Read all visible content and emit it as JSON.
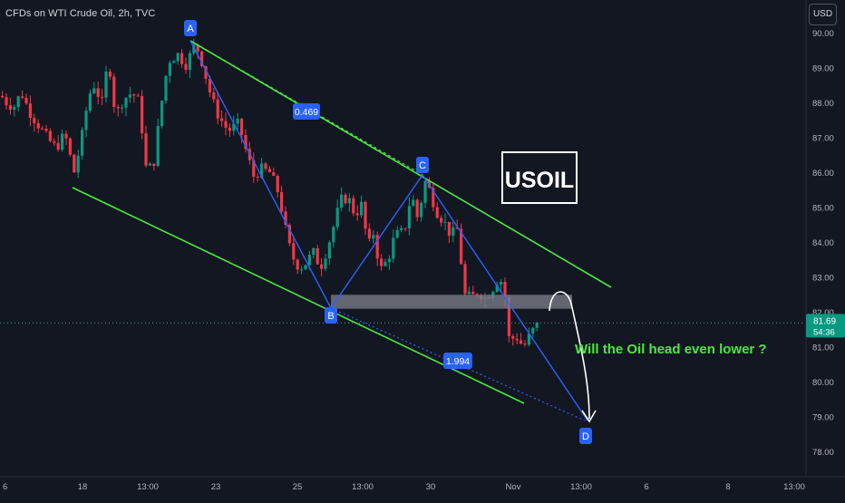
{
  "header": {
    "title": "CFDs on WTI Crude Oil, 2h, TVC"
  },
  "currency_button": {
    "label": "USD"
  },
  "price_tag": {
    "price": "81.69",
    "countdown": "54:36"
  },
  "colors": {
    "up": "#089981",
    "down": "#f23645",
    "channel": "#4ce840",
    "pattern": "#2962ff",
    "callout": "#4ce840"
  },
  "chart_data": {
    "type": "candlestick",
    "symbol": "USOIL",
    "title": "CFDs on WTI Crude Oil, 2h, TVC",
    "y_axis": {
      "range": [
        77.5,
        90.5
      ],
      "ticks": [
        "90.00",
        "89.00",
        "88.00",
        "87.00",
        "86.00",
        "85.00",
        "84.00",
        "83.00",
        "82.00",
        "81.00",
        "80.00",
        "79.00",
        "78.00"
      ],
      "side": "right"
    },
    "x_axis": {
      "ticks": [
        "6",
        "18",
        "13:00",
        "23",
        "25",
        "13:00",
        "30",
        "Nov",
        "13:00",
        "6",
        "8",
        "13:00"
      ]
    },
    "last_price": 81.69,
    "pattern_points": [
      {
        "label": "A",
        "price": 89.7
      },
      {
        "label": "B",
        "price": 82.3
      },
      {
        "label": "C",
        "price": 85.8
      },
      {
        "label": "D",
        "price": 78.9
      }
    ],
    "fib_ratios": [
      "0.469",
      "1.994"
    ],
    "support_zone": {
      "low": 82.1,
      "high": 82.5
    },
    "annotations": {
      "symbol_box": "USOIL",
      "callout": "Will the Oil head even lower ?"
    },
    "grid": false
  }
}
